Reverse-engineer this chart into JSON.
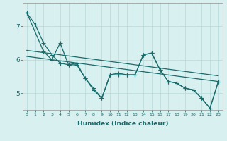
{
  "xlabel": "Humidex (Indice chaleur)",
  "bg_color": "#d8f0f0",
  "grid_color": "#b8d8d8",
  "line_color": "#1a6b6b",
  "xlim": [
    -0.5,
    23.5
  ],
  "ylim": [
    4.5,
    7.7
  ],
  "yticks": [
    5,
    6,
    7
  ],
  "xtick_labels": [
    "0",
    "1",
    "2",
    "3",
    "4",
    "5",
    "6",
    "7",
    "8",
    "9",
    "10",
    "11",
    "12",
    "13",
    "14",
    "15",
    "16",
    "17",
    "18",
    "19",
    "20",
    "21",
    "22",
    "23"
  ],
  "series": [
    {
      "x": [
        0,
        1,
        2,
        3,
        4,
        5,
        6,
        7,
        8,
        9,
        10,
        11,
        12,
        13,
        14,
        15,
        16,
        17,
        18,
        19,
        20,
        21,
        22,
        23
      ],
      "y": [
        7.4,
        7.05,
        6.5,
        6.15,
        5.9,
        5.85,
        5.9,
        5.45,
        5.15,
        4.85,
        5.55,
        5.6,
        5.55,
        5.55,
        6.15,
        6.2,
        5.7,
        5.35,
        5.3,
        5.15,
        5.1,
        4.85,
        4.55,
        5.35
      ],
      "marker": "+",
      "markersize": 4,
      "linewidth": 0.9
    },
    {
      "x": [
        0,
        2,
        3,
        4,
        5,
        6,
        7,
        8,
        9,
        10,
        11,
        12,
        13,
        14,
        15,
        16,
        17,
        18,
        19,
        20,
        21,
        22,
        23
      ],
      "y": [
        7.4,
        6.25,
        6.0,
        6.5,
        5.85,
        5.85,
        5.45,
        5.1,
        4.85,
        5.55,
        5.55,
        5.55,
        5.55,
        6.15,
        6.2,
        5.7,
        5.35,
        5.3,
        5.15,
        5.1,
        4.85,
        4.55,
        5.35
      ],
      "marker": "+",
      "markersize": 4,
      "linewidth": 0.9
    },
    {
      "x": [
        0,
        23
      ],
      "y": [
        6.28,
        5.52
      ],
      "marker": null,
      "markersize": 0,
      "linewidth": 0.9
    },
    {
      "x": [
        0,
        23
      ],
      "y": [
        6.1,
        5.35
      ],
      "marker": null,
      "markersize": 0,
      "linewidth": 0.9
    }
  ]
}
